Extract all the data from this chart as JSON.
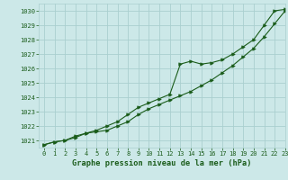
{
  "title": "Graphe pression niveau de la mer (hPa)",
  "bg_color": "#cce8e8",
  "line_color": "#1a5c1a",
  "grid_color": "#aacfcf",
  "xlim": [
    -0.5,
    23
  ],
  "ylim": [
    1020.5,
    1030.5
  ],
  "yticks": [
    1021,
    1022,
    1023,
    1024,
    1025,
    1026,
    1027,
    1028,
    1029,
    1030
  ],
  "xticks": [
    0,
    1,
    2,
    3,
    4,
    5,
    6,
    7,
    8,
    9,
    10,
    11,
    12,
    13,
    14,
    15,
    16,
    17,
    18,
    19,
    20,
    21,
    22,
    23
  ],
  "series1_x": [
    0,
    1,
    2,
    3,
    4,
    5,
    6,
    7,
    8,
    9,
    10,
    11,
    12,
    13,
    14,
    15,
    16,
    17,
    18,
    19,
    20,
    21,
    22,
    23
  ],
  "series1_y": [
    1020.7,
    1020.9,
    1021.0,
    1021.3,
    1021.5,
    1021.6,
    1021.7,
    1022.0,
    1022.3,
    1022.8,
    1023.2,
    1023.5,
    1023.8,
    1024.1,
    1024.4,
    1024.8,
    1025.2,
    1025.7,
    1026.2,
    1026.8,
    1027.4,
    1028.2,
    1029.1,
    1030.0
  ],
  "series2_x": [
    0,
    1,
    2,
    3,
    4,
    5,
    6,
    7,
    8,
    9,
    10,
    11,
    12,
    13,
    14,
    15,
    16,
    17,
    18,
    19,
    20,
    21,
    22,
    23
  ],
  "series2_y": [
    1020.7,
    1020.9,
    1021.0,
    1021.2,
    1021.5,
    1021.7,
    1022.0,
    1022.3,
    1022.8,
    1023.3,
    1023.6,
    1023.9,
    1024.2,
    1026.3,
    1026.5,
    1026.3,
    1026.4,
    1026.6,
    1027.0,
    1027.5,
    1028.0,
    1029.0,
    1030.0,
    1030.1
  ]
}
